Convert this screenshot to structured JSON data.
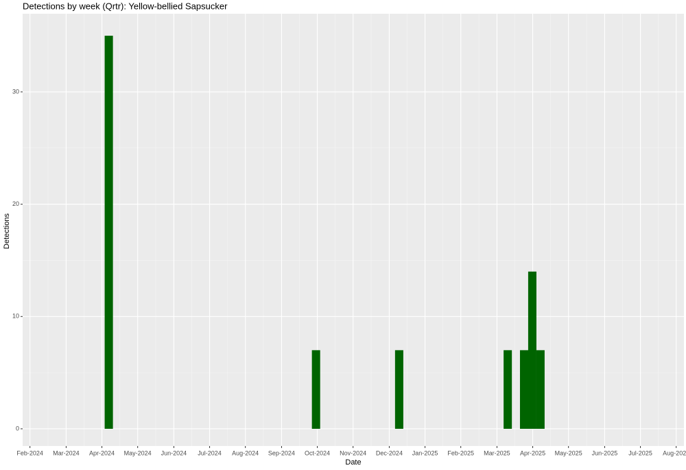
{
  "chart_data": {
    "type": "bar",
    "title": "Detections by week (Qrtr): Yellow-bellied Sapsucker",
    "x_label": "Date",
    "y_label": "Detections",
    "x": [
      2024.266,
      2024.747,
      2024.94,
      2025.192,
      2025.23,
      2025.249,
      2025.268
    ],
    "values": [
      35,
      7,
      7,
      7,
      7,
      14,
      7
    ],
    "color": "#006400",
    "xlim": [
      2024.066,
      2025.601
    ],
    "xticks": [
      {
        "value": 2024.083,
        "label": "Feb-2024"
      },
      {
        "value": 2024.167,
        "label": "Mar-2024"
      },
      {
        "value": 2024.25,
        "label": "Apr-2024"
      },
      {
        "value": 2024.333,
        "label": "May-2024"
      },
      {
        "value": 2024.417,
        "label": "Jun-2024"
      },
      {
        "value": 2024.5,
        "label": "Jul-2024"
      },
      {
        "value": 2024.583,
        "label": "Aug-2024"
      },
      {
        "value": 2024.667,
        "label": "Sep-2024"
      },
      {
        "value": 2024.75,
        "label": "Oct-2024"
      },
      {
        "value": 2024.833,
        "label": "Nov-2024"
      },
      {
        "value": 2024.917,
        "label": "Dec-2024"
      },
      {
        "value": 2025.0,
        "label": "Jan-2025"
      },
      {
        "value": 2025.083,
        "label": "Feb-2025"
      },
      {
        "value": 2025.167,
        "label": "Mar-2025"
      },
      {
        "value": 2025.25,
        "label": "Apr-2025"
      },
      {
        "value": 2025.333,
        "label": "May-2025"
      },
      {
        "value": 2025.417,
        "label": "Jun-2025"
      },
      {
        "value": 2025.5,
        "label": "Jul-2025"
      },
      {
        "value": 2025.583,
        "label": "Aug-2025"
      }
    ],
    "ylim": [
      -1.53,
      36.96
    ],
    "yticks": [
      0,
      10,
      20,
      30
    ],
    "grid": true
  }
}
